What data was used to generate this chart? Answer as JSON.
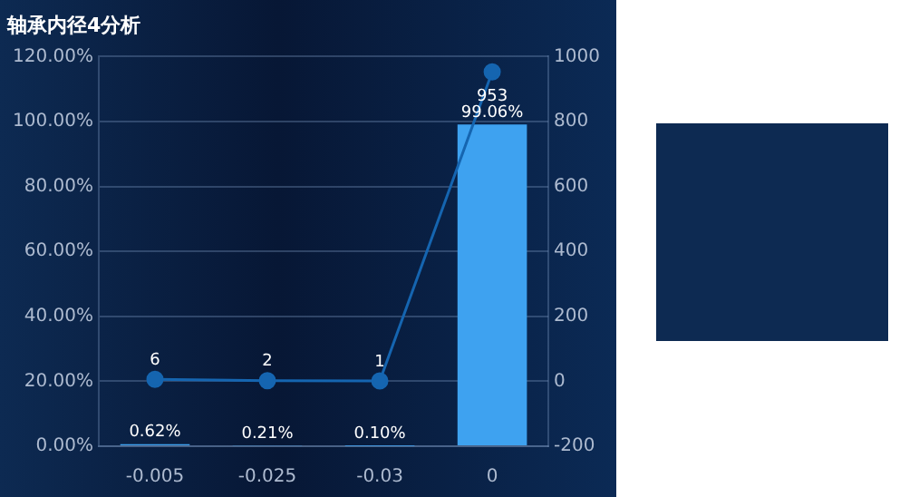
{
  "chart_data": {
    "type": "bar",
    "title": "轴承内径4分析",
    "categories": [
      "-0.005",
      "-0.025",
      "-0.03",
      "0"
    ],
    "series": [
      {
        "color": "#3ea2f0",
        "values": [
          0.62,
          0.21,
          0.1,
          99.06
        ],
        "value_labels": [
          "0.62%",
          "0.21%",
          "0.10%",
          "99.06%"
        ]
      },
      {
        "type": "line",
        "axis": "y2",
        "color": "#1565b0",
        "values": [
          6,
          2,
          1,
          953
        ],
        "value_labels": [
          "6",
          "2",
          "1",
          "953"
        ]
      }
    ],
    "ylim": [
      0,
      120
    ],
    "yticks": [
      {
        "value": 0,
        "label": "0.00%"
      },
      {
        "value": 20,
        "label": "20.00%"
      },
      {
        "value": 40,
        "label": "40.00%"
      },
      {
        "value": 60,
        "label": "60.00%"
      },
      {
        "value": 80,
        "label": "80.00%"
      },
      {
        "value": 100,
        "label": "100.00%"
      },
      {
        "value": 120,
        "label": "120.00%"
      }
    ],
    "y2lim": [
      -200,
      1000
    ],
    "y2ticks": [
      -200,
      0,
      200,
      400,
      600,
      800,
      1000
    ],
    "grid": "y",
    "legend": false,
    "marker": "circle"
  }
}
